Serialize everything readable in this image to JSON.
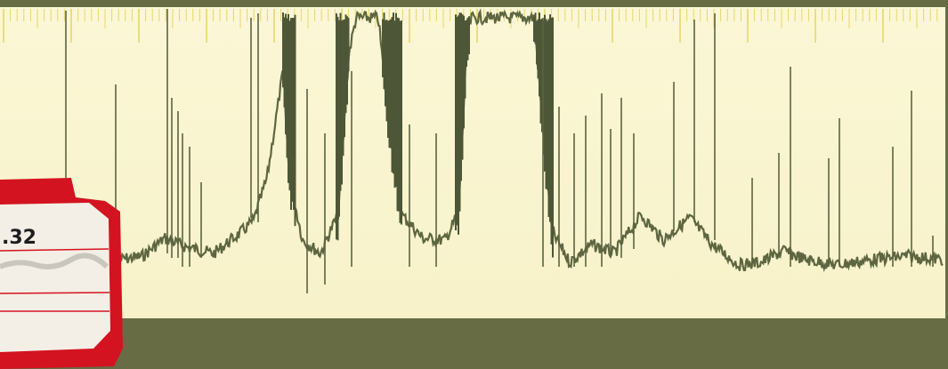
{
  "label": ".32"
}
